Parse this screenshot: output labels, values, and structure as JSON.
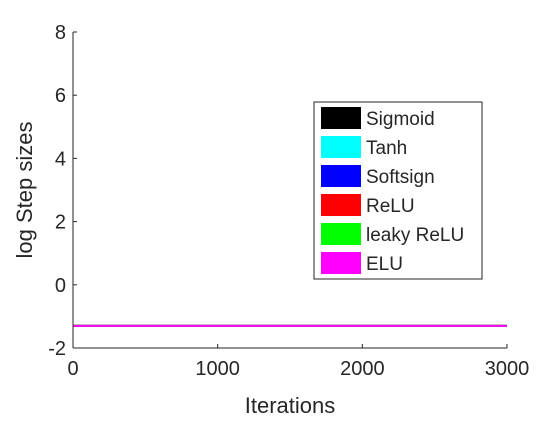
{
  "chart_data": {
    "type": "line",
    "title": "",
    "xlabel": "Iterations",
    "ylabel": "log Step sizes",
    "xlim": [
      0,
      3000
    ],
    "ylim": [
      -2,
      8
    ],
    "xticks": [
      0,
      1000,
      2000,
      3000
    ],
    "yticks": [
      -2,
      0,
      2,
      4,
      6,
      8
    ],
    "xtick_labels": [
      "0",
      "1000",
      "2000",
      "3000"
    ],
    "ytick_labels": [
      "-2",
      "0",
      "2",
      "4",
      "6",
      "8"
    ],
    "grid": false,
    "legend_position": "inside-right",
    "series": [
      {
        "name": "Sigmoid",
        "color": "#000000",
        "x": [
          0,
          3000
        ],
        "y": [
          -1.3,
          -1.3
        ]
      },
      {
        "name": "Tanh",
        "color": "#00ffff",
        "x": [
          0,
          3000
        ],
        "y": [
          -1.3,
          -1.3
        ]
      },
      {
        "name": "Softsign",
        "color": "#0000ff",
        "x": [
          0,
          3000
        ],
        "y": [
          -1.3,
          -1.3
        ]
      },
      {
        "name": "ReLU",
        "color": "#ff0000",
        "x": [
          0,
          3000
        ],
        "y": [
          -1.3,
          -1.3
        ]
      },
      {
        "name": "leaky ReLU",
        "color": "#00ff00",
        "x": [
          0,
          3000
        ],
        "y": [
          -1.3,
          -1.3
        ]
      },
      {
        "name": "ELU",
        "color": "#ff00ff",
        "x": [
          0,
          3000
        ],
        "y": [
          -1.3,
          -1.3
        ]
      }
    ]
  }
}
